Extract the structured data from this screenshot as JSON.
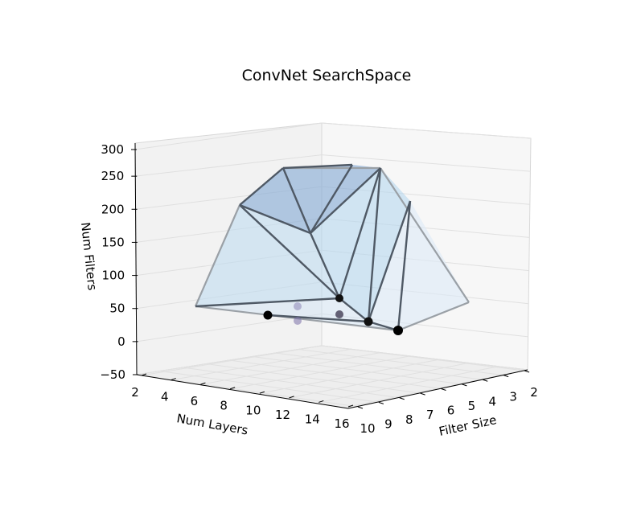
{
  "chart_data": {
    "type": "scatter",
    "title": "ConvNet SearchSpace",
    "xlabel": "Num Layers",
    "ylabel": "Filter Size",
    "zlabel": "Num Filters",
    "xlim": [
      2,
      16
    ],
    "ylim": [
      2,
      10
    ],
    "zlim": [
      -50,
      300
    ],
    "x_ticks": [
      "2",
      "4",
      "6",
      "8",
      "10",
      "12",
      "14",
      "16"
    ],
    "y_ticks": [
      "10",
      "9",
      "8",
      "7",
      "6",
      "5",
      "4",
      "3",
      "2"
    ],
    "z_ticks": [
      "300",
      "250",
      "200",
      "150",
      "100",
      "50",
      "0",
      "−50"
    ],
    "grid": true,
    "points_front": [
      {
        "x": 3,
        "y": 4,
        "z": 60
      },
      {
        "x": 6,
        "y": 4,
        "z": 70
      },
      {
        "x": 8,
        "y": 5,
        "z": 65
      },
      {
        "x": 12,
        "y": 8,
        "z": 40
      },
      {
        "x": 11,
        "y": 6,
        "z": 50
      }
    ],
    "points_back": [
      {
        "x": 5,
        "y": 8,
        "z": 60
      },
      {
        "x": 5,
        "y": 8,
        "z": 35
      },
      {
        "x": 7,
        "y": 7,
        "z": 40
      }
    ],
    "hull_vertices": [
      {
        "x": 2,
        "y": 2,
        "z": 100
      },
      {
        "x": 3,
        "y": 3,
        "z": 250
      },
      {
        "x": 4,
        "y": 5,
        "z": 280
      },
      {
        "x": 6,
        "y": 7,
        "z": 290
      },
      {
        "x": 10,
        "y": 9,
        "z": 290
      },
      {
        "x": 13,
        "y": 10,
        "z": 240
      },
      {
        "x": 16,
        "y": 10,
        "z": 90
      }
    ],
    "colors": {
      "surface_fill": "#a9cde8",
      "surface_top": "#8aaed6",
      "edge_front": "#4a5561",
      "edge_back": "#9aa0a6",
      "point": "#000000",
      "point_faint": "#7a6fa8",
      "pane_left": "#f2f2f2",
      "pane_back": "#f7f7f7",
      "pane_floor": "#eaeaea",
      "grid": "#e0e0e0"
    }
  }
}
